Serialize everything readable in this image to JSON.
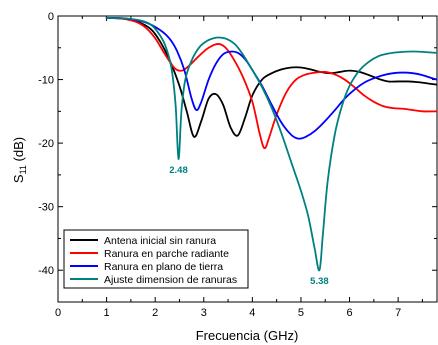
{
  "chart_data": {
    "type": "line",
    "xlabel": "Frecuencia (GHz)",
    "ylabel_main": "S",
    "ylabel_sub": "11",
    "ylabel_unit": " (dB)",
    "xlim": [
      0,
      7.8
    ],
    "ylim": [
      -45,
      0
    ],
    "xticks": [
      0,
      1,
      2,
      3,
      4,
      5,
      6,
      7
    ],
    "yticks": [
      0,
      -10,
      -20,
      -30,
      -40
    ],
    "grid": false,
    "legend_position": "bottom-left",
    "series": [
      {
        "name": "Antena inicial sin ranura",
        "color": "#000000",
        "points": [
          [
            1.0,
            -0.3
          ],
          [
            1.3,
            -0.4
          ],
          [
            1.6,
            -0.8
          ],
          [
            1.9,
            -2.0
          ],
          [
            2.1,
            -4.0
          ],
          [
            2.3,
            -7.0
          ],
          [
            2.5,
            -11.0
          ],
          [
            2.65,
            -15.0
          ],
          [
            2.8,
            -19.0
          ],
          [
            2.95,
            -16.5
          ],
          [
            3.1,
            -13.0
          ],
          [
            3.25,
            -12.3
          ],
          [
            3.4,
            -14.0
          ],
          [
            3.55,
            -17.5
          ],
          [
            3.7,
            -18.8
          ],
          [
            3.85,
            -16.0
          ],
          [
            4.0,
            -12.5
          ],
          [
            4.2,
            -10.0
          ],
          [
            4.4,
            -9.0
          ],
          [
            4.6,
            -8.4
          ],
          [
            4.8,
            -8.1
          ],
          [
            5.0,
            -8.1
          ],
          [
            5.2,
            -8.4
          ],
          [
            5.4,
            -8.8
          ],
          [
            5.6,
            -9.0
          ],
          [
            5.8,
            -8.8
          ],
          [
            6.0,
            -8.6
          ],
          [
            6.2,
            -8.8
          ],
          [
            6.4,
            -9.3
          ],
          [
            6.6,
            -9.9
          ],
          [
            6.8,
            -10.3
          ],
          [
            7.0,
            -10.3
          ],
          [
            7.2,
            -10.3
          ],
          [
            7.4,
            -10.4
          ],
          [
            7.6,
            -10.6
          ],
          [
            7.8,
            -10.8
          ]
        ]
      },
      {
        "name": "Ranura en parche radiante",
        "color": "#ff0000",
        "points": [
          [
            1.0,
            -0.3
          ],
          [
            1.3,
            -0.4
          ],
          [
            1.6,
            -0.9
          ],
          [
            1.8,
            -1.8
          ],
          [
            2.0,
            -3.5
          ],
          [
            2.2,
            -6.0
          ],
          [
            2.4,
            -8.2
          ],
          [
            2.55,
            -8.6
          ],
          [
            2.7,
            -7.8
          ],
          [
            2.9,
            -6.3
          ],
          [
            3.1,
            -5.0
          ],
          [
            3.3,
            -4.4
          ],
          [
            3.45,
            -5.0
          ],
          [
            3.6,
            -6.6
          ],
          [
            3.8,
            -9.5
          ],
          [
            4.0,
            -13.5
          ],
          [
            4.15,
            -18.5
          ],
          [
            4.25,
            -20.8
          ],
          [
            4.35,
            -19.0
          ],
          [
            4.5,
            -15.5
          ],
          [
            4.7,
            -12.0
          ],
          [
            4.9,
            -10.0
          ],
          [
            5.1,
            -9.2
          ],
          [
            5.3,
            -8.9
          ],
          [
            5.5,
            -8.8
          ],
          [
            5.7,
            -9.2
          ],
          [
            5.9,
            -10.0
          ],
          [
            6.1,
            -11.2
          ],
          [
            6.3,
            -12.5
          ],
          [
            6.5,
            -13.5
          ],
          [
            6.7,
            -14.2
          ],
          [
            6.9,
            -14.5
          ],
          [
            7.1,
            -14.6
          ],
          [
            7.3,
            -14.8
          ],
          [
            7.5,
            -15.0
          ],
          [
            7.8,
            -15.0
          ]
        ]
      },
      {
        "name": "Ranura en plano de tierra",
        "color": "#0000ff",
        "points": [
          [
            1.0,
            -0.3
          ],
          [
            1.4,
            -0.4
          ],
          [
            1.8,
            -1.0
          ],
          [
            2.1,
            -2.2
          ],
          [
            2.3,
            -3.6
          ],
          [
            2.45,
            -5.5
          ],
          [
            2.6,
            -8.5
          ],
          [
            2.75,
            -13.0
          ],
          [
            2.85,
            -14.8
          ],
          [
            2.95,
            -13.5
          ],
          [
            3.1,
            -10.0
          ],
          [
            3.25,
            -7.5
          ],
          [
            3.4,
            -6.0
          ],
          [
            3.55,
            -5.6
          ],
          [
            3.7,
            -5.8
          ],
          [
            3.85,
            -6.8
          ],
          [
            4.0,
            -8.5
          ],
          [
            4.2,
            -11.0
          ],
          [
            4.4,
            -14.0
          ],
          [
            4.6,
            -16.8
          ],
          [
            4.8,
            -18.7
          ],
          [
            4.95,
            -19.3
          ],
          [
            5.1,
            -19.0
          ],
          [
            5.3,
            -18.0
          ],
          [
            5.5,
            -16.5
          ],
          [
            5.7,
            -14.8
          ],
          [
            5.9,
            -13.0
          ],
          [
            6.1,
            -11.6
          ],
          [
            6.3,
            -10.5
          ],
          [
            6.5,
            -9.8
          ],
          [
            6.7,
            -9.3
          ],
          [
            6.9,
            -9.0
          ],
          [
            7.1,
            -8.9
          ],
          [
            7.3,
            -9.0
          ],
          [
            7.5,
            -9.3
          ],
          [
            7.7,
            -9.8
          ],
          [
            7.8,
            -10.0
          ]
        ]
      },
      {
        "name": "Ajuste dimension de ranuras",
        "color": "#008080",
        "points": [
          [
            1.0,
            -0.3
          ],
          [
            1.4,
            -0.4
          ],
          [
            1.7,
            -0.7
          ],
          [
            1.9,
            -1.3
          ],
          [
            2.05,
            -2.5
          ],
          [
            2.2,
            -4.5
          ],
          [
            2.33,
            -8.0
          ],
          [
            2.42,
            -14.0
          ],
          [
            2.48,
            -22.5
          ],
          [
            2.54,
            -15.0
          ],
          [
            2.62,
            -10.0
          ],
          [
            2.75,
            -7.0
          ],
          [
            2.9,
            -5.0
          ],
          [
            3.05,
            -4.0
          ],
          [
            3.2,
            -3.5
          ],
          [
            3.35,
            -3.4
          ],
          [
            3.5,
            -3.7
          ],
          [
            3.65,
            -4.5
          ],
          [
            3.8,
            -6.0
          ],
          [
            4.0,
            -8.5
          ],
          [
            4.2,
            -11.2
          ],
          [
            4.4,
            -14.5
          ],
          [
            4.6,
            -18.5
          ],
          [
            4.8,
            -23.0
          ],
          [
            5.0,
            -27.5
          ],
          [
            5.15,
            -31.5
          ],
          [
            5.28,
            -36.5
          ],
          [
            5.38,
            -40.0
          ],
          [
            5.45,
            -34.5
          ],
          [
            5.55,
            -26.0
          ],
          [
            5.7,
            -18.5
          ],
          [
            5.85,
            -14.0
          ],
          [
            6.0,
            -11.0
          ],
          [
            6.2,
            -8.6
          ],
          [
            6.4,
            -7.2
          ],
          [
            6.6,
            -6.3
          ],
          [
            6.8,
            -5.9
          ],
          [
            7.0,
            -5.7
          ],
          [
            7.2,
            -5.6
          ],
          [
            7.4,
            -5.6
          ],
          [
            7.6,
            -5.7
          ],
          [
            7.8,
            -5.8
          ]
        ]
      }
    ],
    "annotations": [
      {
        "text": "2.48",
        "x": 2.48,
        "y": -22.5,
        "color": "#008080"
      },
      {
        "text": "5.38",
        "x": 5.38,
        "y": -40.0,
        "color": "#008080"
      }
    ]
  }
}
